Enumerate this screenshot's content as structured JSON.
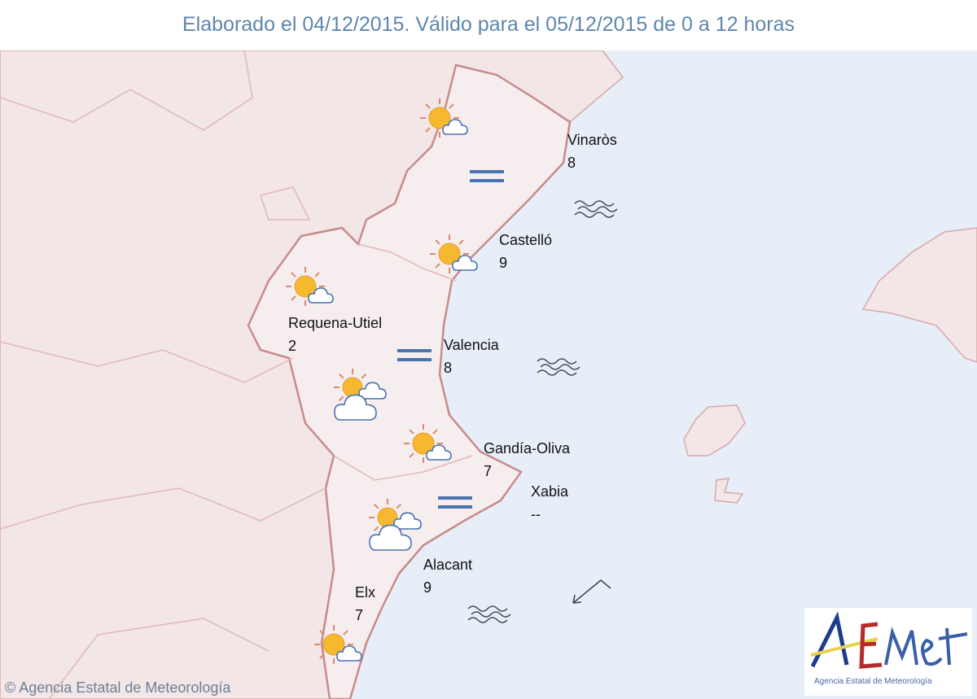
{
  "title": "Elaborado el 04/12/2015. Válido para el 05/12/2015 de 0 a 12 horas",
  "colors": {
    "sea": "#e7eef8",
    "land": "#f2e6e6",
    "border": "#c98a8a",
    "title": "#5f86ad",
    "icon_blue": "#4a73b0"
  },
  "cities": [
    {
      "name": "Vinaròs",
      "temp": "8"
    },
    {
      "name": "Castelló",
      "temp": "9"
    },
    {
      "name": "Requena-Utiel",
      "temp": "2"
    },
    {
      "name": "Valencia",
      "temp": "8"
    },
    {
      "name": "Gandía-Oliva",
      "temp": "7"
    },
    {
      "name": "Xabia",
      "temp": "--"
    },
    {
      "name": "Alacant",
      "temp": "9"
    },
    {
      "name": "Elx",
      "temp": "7"
    }
  ],
  "symbols": {
    "sky": [
      "sun-small-cloud-icon",
      "sun-small-cloud-icon",
      "sun-small-cloud-icon",
      "sun-big-cloud-icon",
      "sun-small-cloud-icon",
      "sun-big-cloud-icon",
      "sun-small-cloud-icon"
    ],
    "wind": [
      "calm-wind-icon",
      "calm-wind-icon",
      "calm-wind-icon"
    ],
    "sea": [
      "sea-waves-icon",
      "sea-waves-icon",
      "sea-waves-icon"
    ],
    "sea_wind": "wind-arrow-icon"
  },
  "footer": {
    "copyright": "© Agencia Estatal de Meteorología"
  },
  "logo": {
    "text": "AEMet",
    "subtitle": "Agencia Estatal de Meteorología"
  }
}
